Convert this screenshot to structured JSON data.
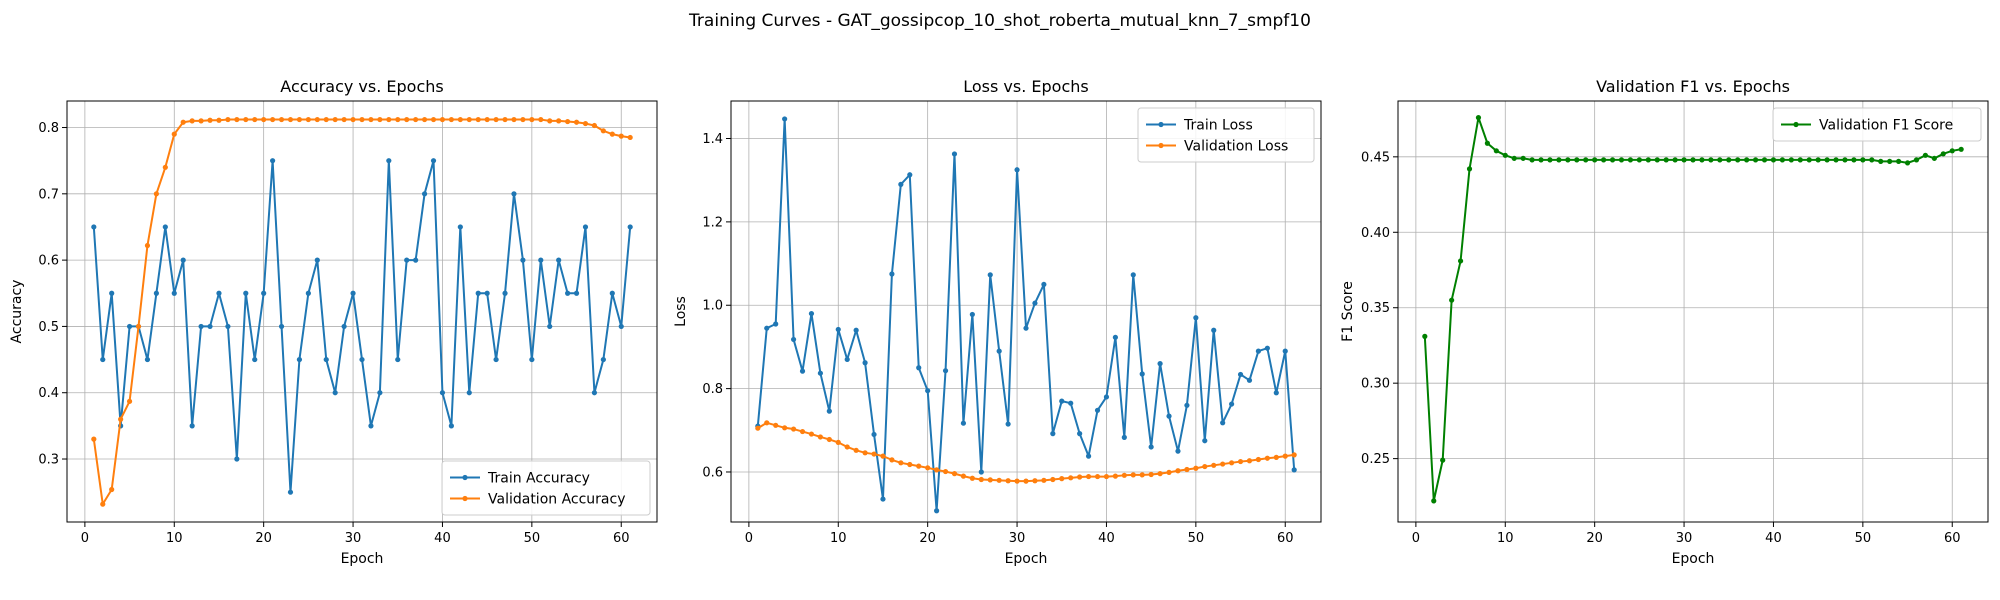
{
  "suptitle": "Training Curves - GAT_gossipcop_10_shot_roberta_mutual_knn_7_smpf10",
  "chart_data": [
    {
      "type": "line",
      "title": "Accuracy vs. Epochs",
      "xlabel": "Epoch",
      "ylabel": "Accuracy",
      "xlim": [
        -2,
        64
      ],
      "ylim": [
        0.205,
        0.84
      ],
      "xticks": [
        0,
        10,
        20,
        30,
        40,
        50,
        60
      ],
      "yticks": [
        0.3,
        0.4,
        0.5,
        0.6,
        0.7,
        0.8
      ],
      "ytick_decimals": 1,
      "grid": true,
      "legend_position": "lower right",
      "x_start": 1,
      "series": [
        {
          "name": "Train Accuracy",
          "color": "#1f77b4",
          "values": [
            0.65,
            0.45,
            0.55,
            0.35,
            0.5,
            0.5,
            0.45,
            0.55,
            0.65,
            0.55,
            0.6,
            0.35,
            0.5,
            0.5,
            0.55,
            0.5,
            0.3,
            0.55,
            0.45,
            0.55,
            0.75,
            0.5,
            0.25,
            0.45,
            0.55,
            0.6,
            0.45,
            0.4,
            0.5,
            0.55,
            0.45,
            0.35,
            0.4,
            0.75,
            0.45,
            0.6,
            0.6,
            0.7,
            0.75,
            0.4,
            0.35,
            0.65,
            0.4,
            0.55,
            0.55,
            0.45,
            0.55,
            0.7,
            0.6,
            0.45,
            0.6,
            0.5,
            0.6,
            0.55,
            0.55,
            0.65,
            0.4,
            0.45,
            0.55,
            0.5,
            0.65
          ]
        },
        {
          "name": "Validation Accuracy",
          "color": "#ff7f0e",
          "values": [
            0.33,
            0.232,
            0.254,
            0.36,
            0.387,
            0.5,
            0.622,
            0.7,
            0.74,
            0.79,
            0.808,
            0.81,
            0.81,
            0.811,
            0.811,
            0.812,
            0.812,
            0.812,
            0.812,
            0.812,
            0.812,
            0.812,
            0.812,
            0.812,
            0.812,
            0.812,
            0.812,
            0.812,
            0.812,
            0.812,
            0.812,
            0.812,
            0.812,
            0.812,
            0.812,
            0.812,
            0.812,
            0.812,
            0.812,
            0.812,
            0.812,
            0.812,
            0.812,
            0.812,
            0.812,
            0.812,
            0.812,
            0.812,
            0.812,
            0.812,
            0.812,
            0.81,
            0.81,
            0.809,
            0.808,
            0.806,
            0.803,
            0.795,
            0.79,
            0.787,
            0.785
          ]
        }
      ]
    },
    {
      "type": "line",
      "title": "Loss vs. Epochs",
      "xlabel": "Epoch",
      "ylabel": "Loss",
      "xlim": [
        -2,
        64
      ],
      "ylim": [
        0.48,
        1.49
      ],
      "xticks": [
        0,
        10,
        20,
        30,
        40,
        50,
        60
      ],
      "yticks": [
        0.6,
        0.8,
        1.0,
        1.2,
        1.4
      ],
      "ytick_decimals": 1,
      "grid": true,
      "legend_position": "upper right",
      "x_start": 1,
      "series": [
        {
          "name": "Train Loss",
          "color": "#1f77b4",
          "values": [
            0.71,
            0.945,
            0.955,
            1.447,
            0.918,
            0.842,
            0.98,
            0.837,
            0.746,
            0.942,
            0.87,
            0.94,
            0.862,
            0.69,
            0.535,
            1.075,
            1.29,
            1.313,
            0.85,
            0.795,
            0.507,
            0.843,
            1.363,
            0.717,
            0.978,
            0.6,
            1.073,
            0.89,
            0.715,
            1.325,
            0.945,
            1.005,
            1.05,
            0.692,
            0.77,
            0.765,
            0.692,
            0.638,
            0.748,
            0.78,
            0.923,
            0.683,
            1.073,
            0.835,
            0.66,
            0.86,
            0.734,
            0.65,
            0.76,
            0.97,
            0.675,
            0.94,
            0.718,
            0.763,
            0.834,
            0.82,
            0.89,
            0.897,
            0.79,
            0.89,
            0.605
          ]
        },
        {
          "name": "Validation Loss",
          "color": "#ff7f0e",
          "values": [
            0.705,
            0.718,
            0.712,
            0.706,
            0.703,
            0.697,
            0.691,
            0.684,
            0.678,
            0.671,
            0.66,
            0.652,
            0.646,
            0.643,
            0.638,
            0.629,
            0.622,
            0.618,
            0.614,
            0.61,
            0.605,
            0.601,
            0.596,
            0.59,
            0.585,
            0.582,
            0.581,
            0.58,
            0.579,
            0.578,
            0.578,
            0.579,
            0.58,
            0.582,
            0.584,
            0.586,
            0.588,
            0.589,
            0.589,
            0.589,
            0.59,
            0.592,
            0.593,
            0.593,
            0.594,
            0.596,
            0.599,
            0.603,
            0.606,
            0.609,
            0.613,
            0.616,
            0.619,
            0.622,
            0.625,
            0.627,
            0.63,
            0.633,
            0.635,
            0.638,
            0.641
          ]
        }
      ]
    },
    {
      "type": "line",
      "title": "Validation F1 vs. Epochs",
      "xlabel": "Epoch",
      "ylabel": "F1 Score",
      "xlim": [
        -2,
        64
      ],
      "ylim": [
        0.208,
        0.487
      ],
      "xticks": [
        0,
        10,
        20,
        30,
        40,
        50,
        60
      ],
      "yticks": [
        0.25,
        0.3,
        0.35,
        0.4,
        0.45
      ],
      "ytick_decimals": 2,
      "grid": true,
      "legend_position": "upper right",
      "x_start": 1,
      "series": [
        {
          "name": "Validation F1 Score",
          "color": "#008000",
          "values": [
            0.331,
            0.222,
            0.249,
            0.355,
            0.381,
            0.442,
            0.476,
            0.459,
            0.454,
            0.451,
            0.449,
            0.449,
            0.448,
            0.448,
            0.448,
            0.448,
            0.448,
            0.448,
            0.448,
            0.448,
            0.448,
            0.448,
            0.448,
            0.448,
            0.448,
            0.448,
            0.448,
            0.448,
            0.448,
            0.448,
            0.448,
            0.448,
            0.448,
            0.448,
            0.448,
            0.448,
            0.448,
            0.448,
            0.448,
            0.448,
            0.448,
            0.448,
            0.448,
            0.448,
            0.448,
            0.448,
            0.448,
            0.448,
            0.448,
            0.448,
            0.448,
            0.447,
            0.447,
            0.447,
            0.446,
            0.448,
            0.451,
            0.449,
            0.452,
            0.454,
            0.455
          ]
        }
      ]
    }
  ]
}
